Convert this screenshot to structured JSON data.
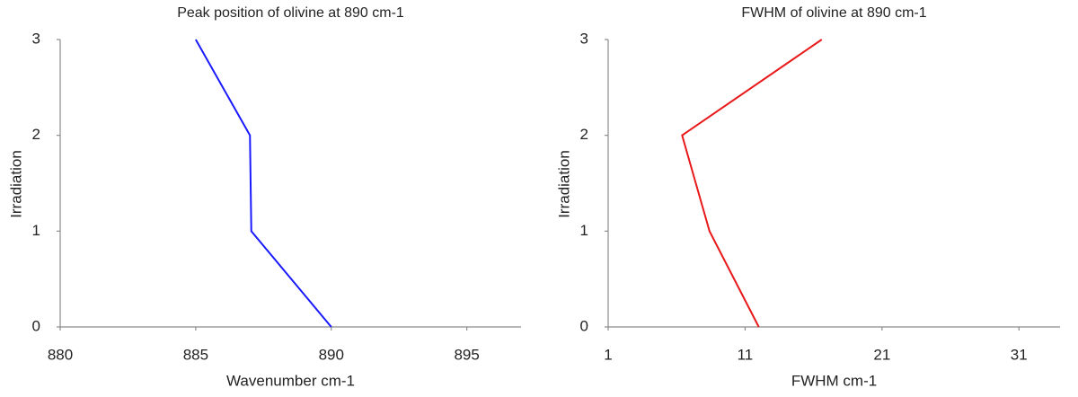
{
  "chart_data": [
    {
      "type": "line",
      "title": "Peak position of olivine at 890 cm-1",
      "x_label": "Wavenumber cm-1",
      "y_label": "Irradiation",
      "x": [
        890.0,
        887.05,
        887.0,
        885.0
      ],
      "values": [
        0,
        1,
        2,
        3
      ],
      "color": "#1a1aff",
      "xlim": [
        880,
        897
      ],
      "xticks": [
        880,
        885,
        890,
        895
      ],
      "ylim": [
        0,
        3
      ],
      "yticks": [
        0,
        1,
        2,
        3
      ]
    },
    {
      "type": "line",
      "title": "FWHM of olivine at 890 cm-1",
      "x_label": "FWHM cm-1",
      "y_label": "Irradiation",
      "x": [
        12.0,
        8.4,
        6.4,
        16.6
      ],
      "values": [
        0,
        1,
        2,
        3
      ],
      "color": "#e8191a",
      "xlim": [
        1,
        34
      ],
      "xticks": [
        1,
        11,
        21,
        31
      ],
      "ylim": [
        0,
        3
      ],
      "yticks": [
        0,
        1,
        2,
        3
      ]
    }
  ]
}
